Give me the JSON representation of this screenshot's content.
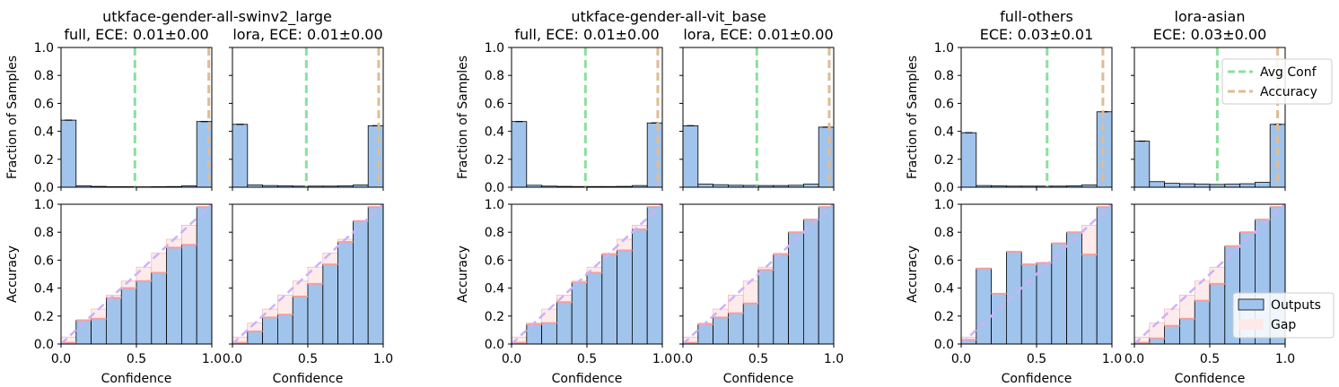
{
  "figure": {
    "groups": [
      {
        "title": "utkface-gender-all-swinv2_large",
        "panels": [
          0,
          1
        ]
      },
      {
        "title": "utkface-gender-all-vit_base",
        "panels": [
          2,
          3
        ]
      },
      {
        "title": "",
        "panels": [
          4,
          5
        ]
      }
    ],
    "ylabel_top": "Fraction of Samples",
    "ylabel_bottom": "Accuracy",
    "xlabel": "Confidence",
    "x_ticks": [
      "0.0",
      "0.5",
      "1.0"
    ],
    "y_ticks": [
      "0.0",
      "0.2",
      "0.4",
      "0.6",
      "0.8",
      "1.0"
    ],
    "legend_top": {
      "avg_conf": "Avg Conf",
      "accuracy": "Accuracy"
    },
    "legend_bottom": {
      "outputs": "Outputs",
      "gap": "Gap"
    },
    "colors": {
      "bar": "#a1c4ec",
      "gap_fill": "#fde9e9",
      "gap_edge": "#f0a0a0",
      "avg_conf": "#8be09e",
      "accuracy": "#dfbc93",
      "diagonal": "#ccb1f7",
      "axis": "#000000"
    }
  },
  "chart_data": [
    {
      "type": "bar",
      "title": "full, ECE: 0.01±0.00",
      "bins": [
        0.0,
        0.1,
        0.2,
        0.3,
        0.4,
        0.5,
        0.6,
        0.7,
        0.8,
        0.9,
        1.0
      ],
      "fractions": [
        0.48,
        0.01,
        0.006,
        0.004,
        0.004,
        0.003,
        0.004,
        0.005,
        0.01,
        0.47
      ],
      "avg_conf": 0.49,
      "accuracy_line": 0.98,
      "accuracy": [
        0.01,
        0.17,
        0.18,
        0.33,
        0.4,
        0.45,
        0.51,
        0.69,
        0.71,
        0.98
      ],
      "xlim": [
        0,
        1
      ],
      "ylim": [
        0,
        1
      ]
    },
    {
      "type": "bar",
      "title": "lora, ECE: 0.01±0.00",
      "bins": [
        0.0,
        0.1,
        0.2,
        0.3,
        0.4,
        0.5,
        0.6,
        0.7,
        0.8,
        0.9,
        1.0
      ],
      "fractions": [
        0.45,
        0.016,
        0.012,
        0.01,
        0.008,
        0.008,
        0.008,
        0.01,
        0.016,
        0.44
      ],
      "avg_conf": 0.49,
      "accuracy_line": 0.97,
      "accuracy": [
        0.01,
        0.09,
        0.19,
        0.21,
        0.34,
        0.43,
        0.57,
        0.73,
        0.88,
        0.98
      ],
      "xlim": [
        0,
        1
      ],
      "ylim": [
        0,
        1
      ]
    },
    {
      "type": "bar",
      "title": "full, ECE: 0.01±0.00",
      "bins": [
        0.0,
        0.1,
        0.2,
        0.3,
        0.4,
        0.5,
        0.6,
        0.7,
        0.8,
        0.9,
        1.0
      ],
      "fractions": [
        0.47,
        0.014,
        0.008,
        0.006,
        0.005,
        0.005,
        0.005,
        0.006,
        0.012,
        0.46
      ],
      "avg_conf": 0.49,
      "accuracy_line": 0.97,
      "accuracy": [
        0.01,
        0.14,
        0.15,
        0.3,
        0.44,
        0.51,
        0.64,
        0.67,
        0.82,
        0.98
      ],
      "xlim": [
        0,
        1
      ],
      "ylim": [
        0,
        1
      ]
    },
    {
      "type": "bar",
      "title": "lora, ECE: 0.01±0.00",
      "bins": [
        0.0,
        0.1,
        0.2,
        0.3,
        0.4,
        0.5,
        0.6,
        0.7,
        0.8,
        0.9,
        1.0
      ],
      "fractions": [
        0.44,
        0.022,
        0.018,
        0.014,
        0.013,
        0.012,
        0.012,
        0.014,
        0.022,
        0.43
      ],
      "avg_conf": 0.49,
      "accuracy_line": 0.97,
      "accuracy": [
        0.01,
        0.14,
        0.19,
        0.22,
        0.29,
        0.53,
        0.64,
        0.8,
        0.89,
        0.98
      ],
      "xlim": [
        0,
        1
      ],
      "ylim": [
        0,
        1
      ]
    },
    {
      "type": "bar",
      "title": "full-others\nECE: 0.03±0.01",
      "bins": [
        0.0,
        0.1,
        0.2,
        0.3,
        0.4,
        0.5,
        0.6,
        0.7,
        0.8,
        0.9,
        1.0
      ],
      "fractions": [
        0.39,
        0.012,
        0.01,
        0.008,
        0.008,
        0.008,
        0.008,
        0.01,
        0.016,
        0.54
      ],
      "avg_conf": 0.57,
      "accuracy_line": 0.94,
      "accuracy": [
        0.03,
        0.54,
        0.36,
        0.66,
        0.57,
        0.58,
        0.72,
        0.8,
        0.64,
        0.98
      ],
      "xlim": [
        0,
        1
      ],
      "ylim": [
        0,
        1
      ]
    },
    {
      "type": "bar",
      "title": "lora-asian\nECE: 0.03±0.00",
      "bins": [
        0.0,
        0.1,
        0.2,
        0.3,
        0.4,
        0.5,
        0.6,
        0.7,
        0.8,
        0.9,
        1.0
      ],
      "fractions": [
        0.33,
        0.04,
        0.028,
        0.025,
        0.022,
        0.02,
        0.022,
        0.025,
        0.035,
        0.45
      ],
      "avg_conf": 0.55,
      "accuracy_line": 0.95,
      "accuracy": [
        0.01,
        0.04,
        0.13,
        0.18,
        0.31,
        0.43,
        0.7,
        0.8,
        0.89,
        0.98
      ],
      "xlim": [
        0,
        1
      ],
      "ylim": [
        0,
        1
      ]
    }
  ]
}
